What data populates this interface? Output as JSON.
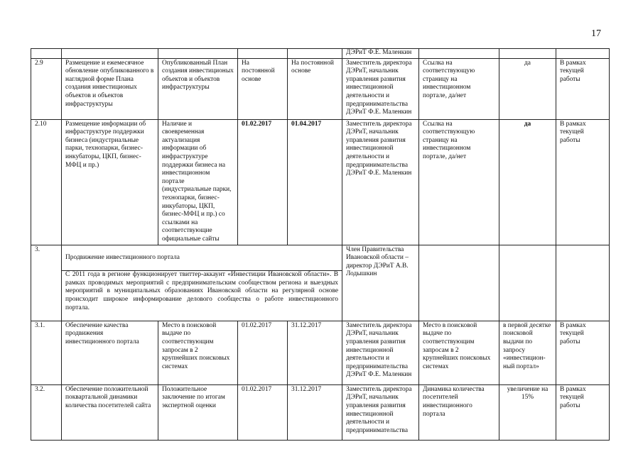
{
  "page_number": "17",
  "top_row": {
    "col6": "ДЭРиТ Ф.Е. Маленкин"
  },
  "rows": [
    {
      "num": "2.9",
      "activity": "Размещение и ежемесячное обновление опубликованного в наглядной форме Плана создания инвестиционых объектов и объектов инфраструктуры",
      "result": "Опубликованный  План создания инвестиционых объектов и объектов инфраструктуры",
      "start": "На постоянной основе",
      "end": "На постоянной основе",
      "responsible": "Заместитель директора ДЭРиТ, начальник управления развития инвестиционной деятельности и предпринимательства ДЭРиТ Ф.Е. Маленкин",
      "indicator": "Ссылка на соответствующую страницу на инвестиционном портале, да/нет",
      "target": "да",
      "funding": "В рамках текущей работы"
    },
    {
      "num": "2.10",
      "activity": "Размещение информации об инфраструктуре поддержки бизнеса (индустриальные парки, технопарки, бизнес-инкубаторы, ЦКП, бизнес-МФЦ и пр.)",
      "result": "Наличие и своевременная актуализация информации об инфраструктуре поддержки бизнеса на инвестиционном портале (индустриальные парки, технопарки, бизнес-инкубаторы, ЦКП, бизнес-МФЦ и пр.) со ссылками на соответствующие официальные сайты",
      "start": "01.02.2017",
      "end": "01.04.2017",
      "responsible": "Заместитель директора ДЭРиТ, начальник управления развития инвестиционной деятельности и предпринимательства ДЭРиТ Ф.Е. Маленкин",
      "indicator": "Ссылка на соответствующую страницу на инвестиционном портале, да/нет",
      "target": "да",
      "funding": "В рамках текущей работы"
    }
  ],
  "section3": {
    "num": "3.",
    "title": "Продвижение инвестиционного портала",
    "description": "С 2011 года в регионе функционирует  твиттер-аккаунт «Инвестиции Ивановской области». В рамках проводимых мероприятий с предпринимательским сообществом региона и выездных мероприятий в муниципальных образованиях Ивановской области на регулярной основе происходит широкое информирование делового сообщества о работе инвестиционного портала.",
    "responsible": "Член Правительства Ивановской области – директор ДЭРиТ А.В. Лодышкин"
  },
  "rows3": [
    {
      "num": "3.1.",
      "activity": "Обеспечение качества продвижения инвестиционного портала",
      "result": "Место в поисковой выдаче по соответствующим запросам в 2 крупнейших поисковых системах",
      "start": "01.02.2017",
      "end": "31.12.2017",
      "responsible": "Заместитель директора ДЭРиТ, начальник управления развития инвестиционной деятельности и предпринимательства ДЭРиТ Ф.Е. Маленкин",
      "indicator": "Место в поисковой выдаче по соответствующим запросам в 2 крупнейших поисковых системах",
      "target": "в первой десятке поисковой выдачи по запросу «инвестицион-ный портал»",
      "funding": "В рамках текущей работы"
    },
    {
      "num": "3.2.",
      "activity": "Обеспечение положительной поквартальной динамики количества посетителей сайта",
      "result": "Положительное заключение по итогам экспертной оценки",
      "start": "01.02.2017",
      "end": "31.12.2017",
      "responsible": "Заместитель директора ДЭРиТ, начальник управления развития инвестиционной деятельности и предпринимательства",
      "indicator": "Динамика количества посетителей инвестиционного портала",
      "target": "увеличение на 15%",
      "funding": "В рамках текущей работы"
    }
  ]
}
